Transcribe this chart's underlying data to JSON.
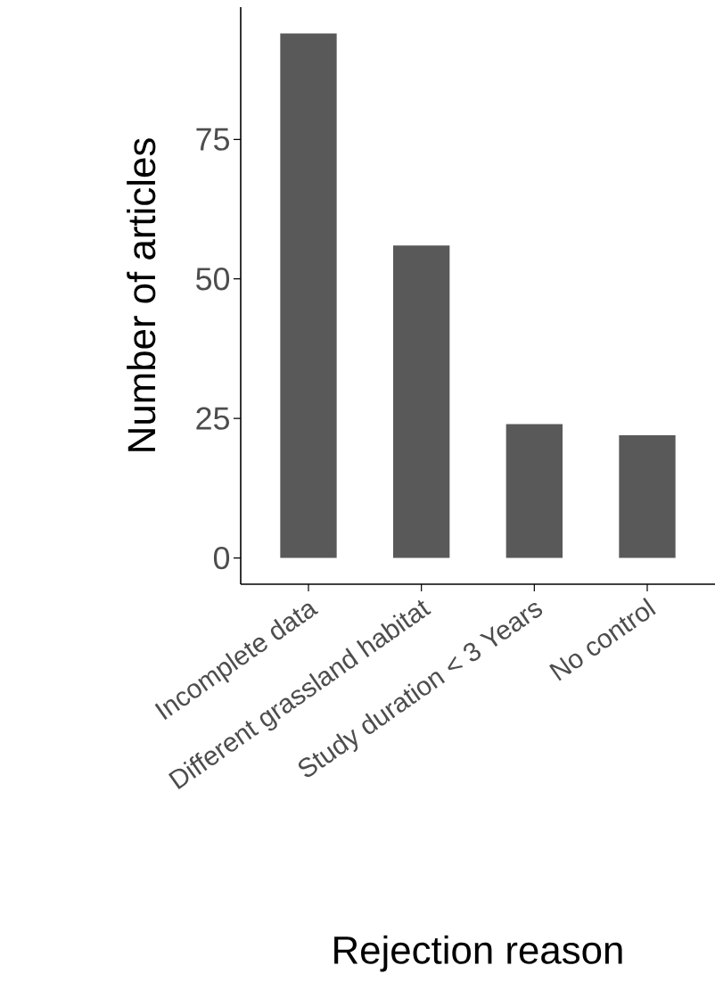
{
  "chart_data": {
    "type": "bar",
    "xlabel": "Rejection reason",
    "ylabel": "Number of articles",
    "categories": [
      "Incomplete data",
      "Different grassland habitat",
      "Study duration < 3 Years",
      "No control"
    ],
    "values": [
      94,
      56,
      24,
      22
    ],
    "color": "#595959",
    "ylim": [
      -4.7,
      98.7
    ],
    "yticks": [
      0,
      25,
      50,
      75
    ],
    "grid": false
  }
}
